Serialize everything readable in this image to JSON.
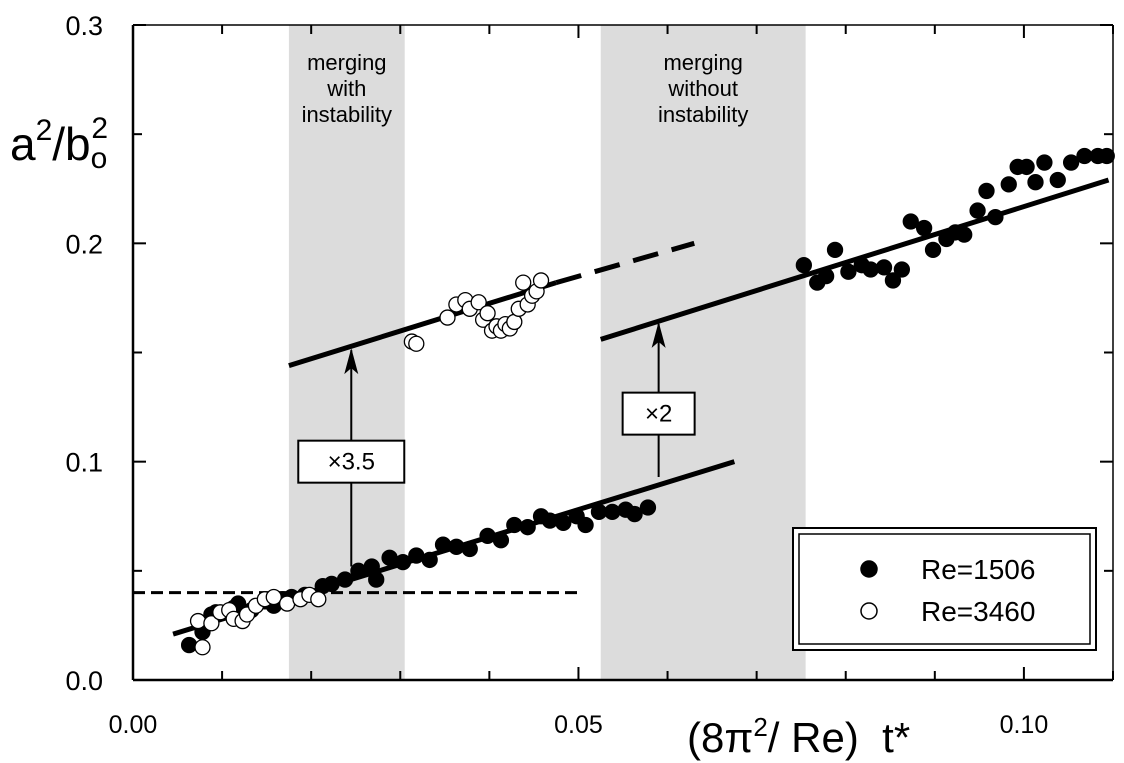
{
  "chart_data": {
    "type": "scatter",
    "xlim": [
      0.0,
      0.11
    ],
    "ylim": [
      0.0,
      0.3
    ],
    "x_ticks": [
      {
        "value": 0.0,
        "label": "0.00"
      },
      {
        "value": 0.05,
        "label": "0.05"
      },
      {
        "value": 0.1,
        "label": "0.10"
      }
    ],
    "y_ticks": [
      {
        "value": 0.0,
        "label": "0.0"
      },
      {
        "value": 0.1,
        "label": "0.1"
      },
      {
        "value": 0.2,
        "label": "0.2"
      },
      {
        "value": 0.3,
        "label": "0.3"
      }
    ],
    "xlabel": "(8π²/ Re)  t*",
    "ylabel": "a²/b₀²",
    "grid": false,
    "legend_position": "bottom-right",
    "bands": [
      {
        "x0": 0.0175,
        "x1": 0.0305,
        "label_lines": [
          "merging",
          "with",
          "instability"
        ],
        "color": "#dcdcdc"
      },
      {
        "x0": 0.0525,
        "x1": 0.0755,
        "label_lines": [
          "merging",
          "without",
          "instability"
        ],
        "color": "#dcdcdc"
      }
    ],
    "fit_lines": [
      {
        "x": [
          0.0045,
          0.0675
        ],
        "y": [
          0.021,
          0.1
        ],
        "style": "solid"
      },
      {
        "x": [
          0.0175,
          0.0475
        ],
        "y": [
          0.144,
          0.182
        ],
        "style": "solid"
      },
      {
        "x": [
          0.0475,
          0.063
        ],
        "y": [
          0.182,
          0.2
        ],
        "style": "dashed"
      },
      {
        "x": [
          0.0525,
          0.1095
        ],
        "y": [
          0.156,
          0.229
        ],
        "style": "solid"
      },
      {
        "x": [
          0.0,
          0.0505
        ],
        "y": [
          0.04,
          0.04
        ],
        "style": "dashed"
      }
    ],
    "arrows": [
      {
        "x": 0.0245,
        "y_from": 0.052,
        "y_to": 0.152
      },
      {
        "x": 0.059,
        "y_from": 0.093,
        "y_to": 0.164
      }
    ],
    "factor_boxes": [
      {
        "label": "×3.5",
        "x": 0.0245,
        "y": 0.1
      },
      {
        "label": "×2",
        "x": 0.059,
        "y": 0.122
      }
    ],
    "series": [
      {
        "name": "Re=1506",
        "marker": "filled-circle",
        "points": [
          [
            0.0063,
            0.016
          ],
          [
            0.0078,
            0.022
          ],
          [
            0.0088,
            0.03
          ],
          [
            0.0093,
            0.031
          ],
          [
            0.0113,
            0.033
          ],
          [
            0.0118,
            0.035
          ],
          [
            0.0133,
            0.032
          ],
          [
            0.0148,
            0.036
          ],
          [
            0.0158,
            0.034
          ],
          [
            0.0163,
            0.036
          ],
          [
            0.0168,
            0.037
          ],
          [
            0.0178,
            0.038
          ],
          [
            0.0193,
            0.039
          ],
          [
            0.0213,
            0.043
          ],
          [
            0.0223,
            0.044
          ],
          [
            0.0238,
            0.046
          ],
          [
            0.0253,
            0.05
          ],
          [
            0.0268,
            0.052
          ],
          [
            0.0273,
            0.046
          ],
          [
            0.0288,
            0.056
          ],
          [
            0.0303,
            0.054
          ],
          [
            0.0318,
            0.057
          ],
          [
            0.0333,
            0.055
          ],
          [
            0.0348,
            0.062
          ],
          [
            0.0363,
            0.061
          ],
          [
            0.0378,
            0.06
          ],
          [
            0.0398,
            0.066
          ],
          [
            0.0413,
            0.064
          ],
          [
            0.0428,
            0.071
          ],
          [
            0.0443,
            0.07
          ],
          [
            0.0458,
            0.075
          ],
          [
            0.0468,
            0.073
          ],
          [
            0.0483,
            0.072
          ],
          [
            0.0498,
            0.075
          ],
          [
            0.0508,
            0.071
          ],
          [
            0.0523,
            0.077
          ],
          [
            0.0538,
            0.077
          ],
          [
            0.0553,
            0.078
          ],
          [
            0.0563,
            0.076
          ],
          [
            0.0578,
            0.079
          ],
          [
            0.0753,
            0.19
          ],
          [
            0.0768,
            0.182
          ],
          [
            0.0778,
            0.185
          ],
          [
            0.0788,
            0.197
          ],
          [
            0.0803,
            0.187
          ],
          [
            0.0818,
            0.19
          ],
          [
            0.0828,
            0.188
          ],
          [
            0.0843,
            0.189
          ],
          [
            0.0853,
            0.183
          ],
          [
            0.0863,
            0.188
          ],
          [
            0.0873,
            0.21
          ],
          [
            0.0888,
            0.207
          ],
          [
            0.0898,
            0.197
          ],
          [
            0.0913,
            0.202
          ],
          [
            0.0923,
            0.205
          ],
          [
            0.0933,
            0.204
          ],
          [
            0.0948,
            0.215
          ],
          [
            0.0958,
            0.224
          ],
          [
            0.0968,
            0.212
          ],
          [
            0.0983,
            0.227
          ],
          [
            0.0993,
            0.235
          ],
          [
            0.1003,
            0.235
          ],
          [
            0.1013,
            0.228
          ],
          [
            0.1023,
            0.237
          ],
          [
            0.1038,
            0.229
          ],
          [
            0.1053,
            0.237
          ],
          [
            0.1068,
            0.24
          ],
          [
            0.1083,
            0.24
          ],
          [
            0.1093,
            0.24
          ]
        ]
      },
      {
        "name": "Re=3460",
        "marker": "open-circle",
        "points": [
          [
            0.0073,
            0.027
          ],
          [
            0.0078,
            0.015
          ],
          [
            0.0088,
            0.026
          ],
          [
            0.0098,
            0.031
          ],
          [
            0.0108,
            0.032
          ],
          [
            0.0113,
            0.028
          ],
          [
            0.0123,
            0.027
          ],
          [
            0.0128,
            0.03
          ],
          [
            0.0138,
            0.034
          ],
          [
            0.0148,
            0.037
          ],
          [
            0.0158,
            0.038
          ],
          [
            0.0173,
            0.035
          ],
          [
            0.0188,
            0.037
          ],
          [
            0.0198,
            0.039
          ],
          [
            0.0208,
            0.037
          ],
          [
            0.0313,
            0.155
          ],
          [
            0.0318,
            0.154
          ],
          [
            0.0353,
            0.166
          ],
          [
            0.0363,
            0.172
          ],
          [
            0.0373,
            0.174
          ],
          [
            0.0378,
            0.17
          ],
          [
            0.0388,
            0.173
          ],
          [
            0.0393,
            0.165
          ],
          [
            0.0398,
            0.168
          ],
          [
            0.0403,
            0.16
          ],
          [
            0.0408,
            0.162
          ],
          [
            0.0413,
            0.16
          ],
          [
            0.0418,
            0.163
          ],
          [
            0.0423,
            0.161
          ],
          [
            0.0428,
            0.164
          ],
          [
            0.0433,
            0.17
          ],
          [
            0.0438,
            0.182
          ],
          [
            0.0443,
            0.172
          ],
          [
            0.0448,
            0.176
          ],
          [
            0.0453,
            0.178
          ],
          [
            0.0458,
            0.183
          ]
        ]
      }
    ]
  }
}
